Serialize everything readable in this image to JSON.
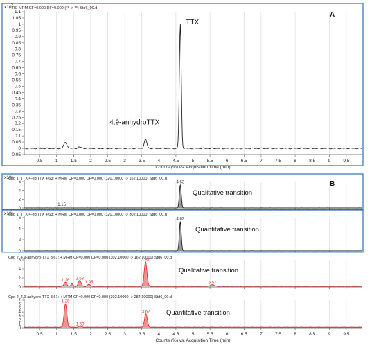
{
  "colors": {
    "frame": "#2f6fb7",
    "black_trace": "#222222",
    "red_trace": "#e03030",
    "grid": "#d6d6d6",
    "fill_gray": "#8a8a8a",
    "fill_red": "#f08080"
  },
  "chart_data": [
    {
      "type": "line",
      "panel_letter": "A",
      "header": "+ TIC MRM CF=0.000 DF=0.000 (** -> **) Std6_00.d",
      "y_multiplier": "x10",
      "y_exponent": "2",
      "ylim": [
        -0.05,
        1.1
      ],
      "yticks": [
        -0.05,
        0,
        0.05,
        0.1,
        0.15,
        0.2,
        0.25,
        0.3,
        0.35,
        0.4,
        0.45,
        0.5,
        0.55,
        0.6,
        0.65,
        0.7,
        0.75,
        0.8,
        0.85,
        0.9,
        0.95,
        1,
        1.05,
        1.1
      ],
      "xlim": [
        0.05,
        9.95
      ],
      "xticks": [
        0.5,
        1,
        1.5,
        2,
        2.5,
        3,
        3.5,
        4,
        4.5,
        5,
        5.5,
        6,
        6.5,
        7,
        7.5,
        8,
        8.5,
        9,
        9.5
      ],
      "xlabel": "Counts (%) vs. Acquisition Time (min)",
      "baseline": 0.0,
      "peaks": [
        {
          "rt": 1.26,
          "height": 0.045,
          "width": 0.05
        },
        {
          "rt": 1.68,
          "height": 0.01,
          "width": 0.05
        },
        {
          "rt": 3.61,
          "height": 0.07,
          "width": 0.04
        },
        {
          "rt": 4.63,
          "height": 1.0,
          "width": 0.028
        }
      ],
      "annotations": [
        {
          "text": "TTX",
          "x": 4.63,
          "y": 1.0
        },
        {
          "text": "4,9-anhydroTTX",
          "x": 3.61,
          "y": 0.07
        }
      ],
      "fill": false
    },
    {
      "type": "line",
      "panel_letter": "B",
      "header": "Cpd 1: TTX/4-epiTTX 4.63: + MRM CF=0.000 DF=0.000 (320.10000 -> 162.10000) Std6_00.d",
      "y_multiplier": "x10",
      "y_exponent": "1",
      "ylim": [
        0,
        6
      ],
      "yticks": [
        0,
        2,
        4,
        6
      ],
      "xlim": [
        0.05,
        9.95
      ],
      "baseline": 0.0,
      "peaks": [
        {
          "rt": 4.63,
          "height": 5.3,
          "width": 0.028
        }
      ],
      "peak_labels": [
        {
          "text": "1.15",
          "x": 1.15,
          "y": 0.15
        },
        {
          "text": "4.63",
          "x": 4.63,
          "y": 5.3
        }
      ],
      "annotation": "Qualitative transition",
      "fill": true
    },
    {
      "type": "line",
      "header": "Cpd 1: TTX/4-epiTTX 4.63: + MRM CF=0.000 DF=0.000 (320.10000 -> 302.10000) Std6_00.d",
      "y_multiplier": "x10",
      "y_exponent": "1",
      "ylim": [
        0,
        6
      ],
      "yticks": [
        0,
        2,
        4,
        6
      ],
      "xlim": [
        0.05,
        9.95
      ],
      "baseline": 0.0,
      "peaks": [
        {
          "rt": 4.63,
          "height": 5.3,
          "width": 0.028
        }
      ],
      "peak_labels": [
        {
          "text": "4.63",
          "x": 4.63,
          "y": 5.3
        }
      ],
      "annotation": "Quantitative transition",
      "fill": true
    },
    {
      "type": "line",
      "header": "Cpd 2: 4,9-anhydro-TTX 3.61: + MRM CF=0.000 DF=0.000 (302.10000 -> 162.10000) Std6_00.d",
      "y_multiplier": "",
      "y_exponent": "",
      "ylim": [
        0,
        6
      ],
      "yticks": [
        0,
        2,
        4,
        6
      ],
      "xlim": [
        0.05,
        9.95
      ],
      "baseline": 0.15,
      "peaks": [
        {
          "rt": 1.26,
          "height": 0.9,
          "width": 0.04
        },
        {
          "rt": 1.45,
          "height": 0.55,
          "width": 0.03
        },
        {
          "rt": 1.68,
          "height": 1.3,
          "width": 0.04
        },
        {
          "rt": 1.95,
          "height": 0.45,
          "width": 0.04
        },
        {
          "rt": 3.61,
          "height": 5.4,
          "width": 0.04
        },
        {
          "rt": 5.57,
          "height": 0.35,
          "width": 0.06
        }
      ],
      "peak_labels": [
        {
          "text": "1.26",
          "x": 1.26,
          "y": 0.9
        },
        {
          "text": "1.68",
          "x": 1.68,
          "y": 1.3
        },
        {
          "text": "1.95",
          "x": 1.95,
          "y": 0.45
        },
        {
          "text": "3.61",
          "x": 3.61,
          "y": 5.4
        },
        {
          "text": "5.57",
          "x": 5.57,
          "y": 0.35
        }
      ],
      "annotation": "Qualitative transition",
      "fill": true
    },
    {
      "type": "line",
      "header": "Cpd 2: 4,9-anhydro-TTX 3.61: + MRM CF=0.000 DF=0.000 (302.10000 -> 284.10000) Std6_00.d",
      "y_multiplier": "",
      "y_exponent": "",
      "ylim": [
        0,
        7
      ],
      "yticks": [
        0,
        1,
        2,
        3,
        4,
        5,
        6,
        7
      ],
      "xlim": [
        0.05,
        9.95
      ],
      "xticks": [
        0.5,
        1,
        1.5,
        2,
        2.5,
        3,
        3.5,
        4,
        4.5,
        5,
        5.5,
        6,
        6.5,
        7,
        7.5,
        8,
        8.5,
        9,
        9.5
      ],
      "xlabel": "Counts (%) vs. Acquisition Time (min)",
      "baseline": 0.15,
      "peaks": [
        {
          "rt": 1.26,
          "height": 6.0,
          "width": 0.04
        },
        {
          "rt": 1.69,
          "height": 0.3,
          "width": 0.04
        },
        {
          "rt": 3.62,
          "height": 3.4,
          "width": 0.04
        }
      ],
      "peak_labels": [
        {
          "text": "1.26",
          "x": 1.26,
          "y": 6.0
        },
        {
          "text": "1.69",
          "x": 1.69,
          "y": 0.3
        },
        {
          "text": "3.62",
          "x": 3.62,
          "y": 3.4
        }
      ],
      "annotation": "Quantitative transition",
      "fill": true
    }
  ]
}
